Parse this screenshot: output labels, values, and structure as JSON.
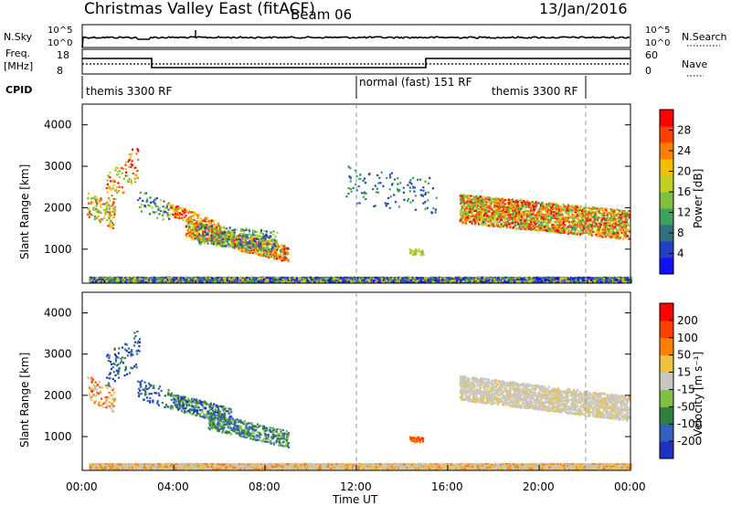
{
  "header": {
    "title": "Christmas Valley East (fitACF)",
    "beam": "Beam 06",
    "date": "13/Jan/2016"
  },
  "top_panels": {
    "nsky_label": "N.Sky",
    "nsky_ticks": [
      "10^5",
      "10^0"
    ],
    "nsky_right_ticks": [
      "10^5",
      "10^0"
    ],
    "nsearch_label": "N.Search",
    "freq_label_line1": "Freq.",
    "freq_label_line2": "[MHz]",
    "freq_ticks": [
      "18",
      "8"
    ],
    "nave_ticks": [
      "60",
      "0"
    ],
    "nave_label": "Nave",
    "cpid_label": "CPID",
    "cpid_segments": [
      "themis 3300 RF",
      "normal (fast) 151 RF",
      "themis 3300 RF"
    ]
  },
  "colors": {
    "gray_scatter": "#c8c8c0",
    "dashed_lines": "#999999"
  },
  "chart_data": [
    {
      "type": "heatmap",
      "panel": "power",
      "ylabel": "Slant Range [km]",
      "yticks": [
        "4000",
        "3000",
        "2000",
        "1000"
      ],
      "ylim": [
        180,
        4500
      ],
      "colorbar_label": "Power [dB]",
      "colorbar_ticks": [
        "28",
        "24",
        "20",
        "16",
        "12",
        "8",
        "4"
      ],
      "colorbar_colors": [
        "#1010ff",
        "#2040c0",
        "#307080",
        "#40a060",
        "#80c040",
        "#c0d020",
        "#f0c000",
        "#ff8000",
        "#ff4000",
        "#ff0000"
      ]
    },
    {
      "type": "heatmap",
      "panel": "velocity",
      "ylabel": "Slant Range [km]",
      "yticks": [
        "4000",
        "3000",
        "2000",
        "1000"
      ],
      "ylim": [
        180,
        4500
      ],
      "colorbar_label": "Velocity [m s⁻¹]",
      "colorbar_ticks": [
        "200",
        "100",
        "50",
        "15",
        "-15",
        "-50",
        "-100",
        "-200"
      ],
      "colorbar_colors": [
        "#2030c0",
        "#3060c0",
        "#308040",
        "#80c040",
        "#c8c8c0",
        "#f0c040",
        "#ff8000",
        "#ff4000",
        "#ff0000"
      ]
    }
  ],
  "x_axis": {
    "label": "Time UT",
    "ticks": [
      "00:00",
      "04:00",
      "08:00",
      "12:00",
      "16:00",
      "20:00",
      "00:00"
    ]
  }
}
